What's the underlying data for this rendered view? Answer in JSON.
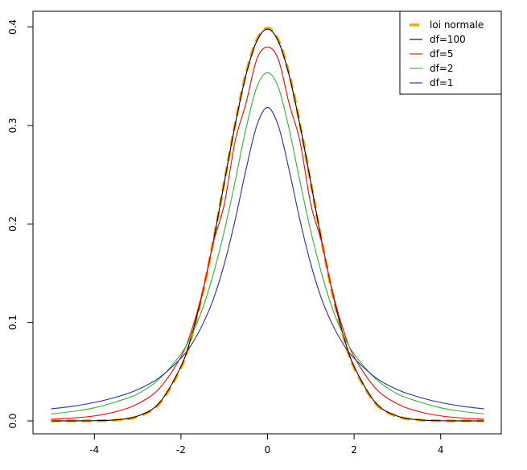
{
  "chart_data": {
    "type": "line",
    "title": "",
    "xlabel": "",
    "ylabel": "",
    "xlim": [
      -5,
      5
    ],
    "ylim": [
      0,
      0.4
    ],
    "x_ticks": [
      -4,
      -2,
      0,
      2,
      4
    ],
    "x_tick_labels": [
      "-4",
      "-2",
      "0",
      "2",
      "4"
    ],
    "y_ticks": [
      0.0,
      0.1,
      0.2,
      0.3,
      0.4
    ],
    "y_tick_labels": [
      "0.0",
      "0.1",
      "0.2",
      "0.3",
      "0.4"
    ],
    "grid": false,
    "legend_position": "top-right",
    "x": [
      -5,
      -4.5,
      -4,
      -3.5,
      -3,
      -2.5,
      -2,
      -1.75,
      -1.5,
      -1.25,
      -1,
      -0.75,
      -0.5,
      -0.25,
      0,
      0.25,
      0.5,
      0.75,
      1,
      1.25,
      1.5,
      1.75,
      2,
      2.5,
      3,
      3.5,
      4,
      4.5,
      5
    ],
    "series": [
      {
        "name": "loi normale",
        "color": "#FFA500",
        "dashed": true,
        "values": [
          1.5e-06,
          1.6e-05,
          0.000134,
          0.000873,
          0.00443,
          0.0175,
          0.054,
          0.0863,
          0.1295,
          0.1826,
          0.242,
          0.3011,
          0.3521,
          0.3867,
          0.3989,
          0.3867,
          0.3521,
          0.3011,
          0.242,
          0.1826,
          0.1295,
          0.0863,
          0.054,
          0.0175,
          0.00443,
          0.000873,
          0.000134,
          1.6e-05,
          1.5e-06
        ]
      },
      {
        "name": "df=100",
        "color": "#000000",
        "dashed": false,
        "values": [
          5e-06,
          3.5e-05,
          0.00021,
          0.00105,
          0.0049,
          0.0182,
          0.0551,
          0.0873,
          0.1303,
          0.1829,
          0.2419,
          0.3003,
          0.351,
          0.3854,
          0.3979,
          0.3854,
          0.351,
          0.3003,
          0.2419,
          0.1829,
          0.1303,
          0.0873,
          0.0551,
          0.0182,
          0.0049,
          0.00105,
          0.00021,
          3.5e-05,
          5e-06
        ]
      },
      {
        "name": "df=5",
        "color": "#FF0000",
        "dashed": false,
        "values": [
          0.0018,
          0.0029,
          0.0051,
          0.0094,
          0.0173,
          0.0329,
          0.0651,
          0.0927,
          0.1312,
          0.1816,
          0.2197,
          0.2837,
          0.322,
          0.367,
          0.3796,
          0.367,
          0.322,
          0.2837,
          0.2197,
          0.1816,
          0.1312,
          0.0927,
          0.0651,
          0.0329,
          0.0173,
          0.0094,
          0.0051,
          0.0029,
          0.0018
        ]
      },
      {
        "name": "df=2",
        "color": "#2FB52F",
        "dashed": false,
        "values": [
          0.0071,
          0.0096,
          0.0133,
          0.0194,
          0.0274,
          0.0427,
          0.068,
          0.0874,
          0.1139,
          0.1496,
          0.1925,
          0.243,
          0.2962,
          0.3387,
          0.3536,
          0.3387,
          0.2962,
          0.243,
          0.1925,
          0.1496,
          0.1139,
          0.0874,
          0.068,
          0.0427,
          0.0274,
          0.0194,
          0.0133,
          0.0096,
          0.0071
        ]
      },
      {
        "name": "df=1",
        "color": "#2B2BA8",
        "dashed": false,
        "values": [
          0.0122,
          0.0149,
          0.0187,
          0.0241,
          0.0318,
          0.0439,
          0.0637,
          0.078,
          0.0979,
          0.1238,
          0.1592,
          0.2037,
          0.2546,
          0.2996,
          0.3183,
          0.2996,
          0.2546,
          0.2037,
          0.1592,
          0.1238,
          0.0979,
          0.078,
          0.0637,
          0.0439,
          0.0318,
          0.0241,
          0.0187,
          0.0149,
          0.0122
        ]
      }
    ]
  }
}
